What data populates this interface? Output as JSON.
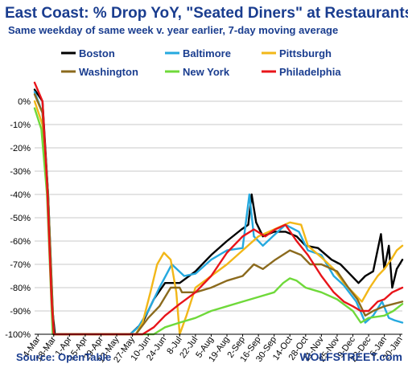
{
  "chart_data": {
    "type": "line",
    "title": "East Coast: % Drop YoY, \"Seated Diners\" at Restaurants",
    "subtitle": "Same weekday of same week v. year earlier, 7-day moving average",
    "source": "Source: OpenTable",
    "brand": "WOLFSTREET.com",
    "ylim": [
      -100,
      10
    ],
    "yticks": [
      0,
      -10,
      -20,
      -30,
      -40,
      -50,
      -60,
      -70,
      -80,
      -90,
      -100
    ],
    "ytick_labels": [
      "0%",
      "-10%",
      "-20%",
      "-30%",
      "-40%",
      "-50%",
      "-60%",
      "-70%",
      "-80%",
      "-90%",
      "-100%"
    ],
    "x_dates": [
      "2020-03-04",
      "2020-03-18",
      "2020-04-01",
      "2020-04-15",
      "2020-04-29",
      "2020-05-13",
      "2020-05-27",
      "2020-06-10",
      "2020-06-24",
      "2020-07-08",
      "2020-07-22",
      "2020-08-05",
      "2020-08-19",
      "2020-09-02",
      "2020-09-16",
      "2020-09-30",
      "2020-10-14",
      "2020-10-28",
      "2020-11-11",
      "2020-11-25",
      "2020-12-09",
      "2020-12-23",
      "2021-01-06",
      "2021-01-20"
    ],
    "xtick_labels": [
      "4-Mar",
      "18-Mar",
      "1-Apr",
      "15-Apr",
      "29-Apr",
      "13-May",
      "27-May",
      "10-Jun",
      "24-Jun",
      "8-Jul",
      "22-Jul",
      "5-Aug",
      "19-Aug",
      "2-Sep",
      "16-Sep",
      "30-Sep",
      "14-Oct",
      "28-Oct",
      "11-Nov",
      "25-Nov",
      "9-Dec",
      "23-Dec",
      "6-Jan",
      "20-Jan"
    ],
    "xlim": [
      "2020-03-01",
      "2021-01-22"
    ],
    "legend_placement": "top, 3 columns",
    "grid": "horizontal",
    "series": [
      {
        "name": "Boston",
        "color": "#000000",
        "points": [
          [
            "2020-03-01",
            5
          ],
          [
            "2020-03-08",
            0
          ],
          [
            "2020-03-13",
            -40
          ],
          [
            "2020-03-17",
            -90
          ],
          [
            "2020-03-19",
            -100
          ],
          [
            "2020-05-25",
            -100
          ],
          [
            "2020-06-05",
            -95
          ],
          [
            "2020-06-15",
            -85
          ],
          [
            "2020-06-25",
            -78
          ],
          [
            "2020-07-08",
            -78
          ],
          [
            "2020-07-22",
            -73
          ],
          [
            "2020-08-05",
            -66
          ],
          [
            "2020-08-19",
            -60
          ],
          [
            "2020-09-01",
            -55
          ],
          [
            "2020-09-07",
            -53
          ],
          [
            "2020-09-10",
            -40
          ],
          [
            "2020-09-14",
            -52
          ],
          [
            "2020-09-20",
            -58
          ],
          [
            "2020-09-30",
            -56
          ],
          [
            "2020-10-10",
            -56
          ],
          [
            "2020-10-20",
            -58
          ],
          [
            "2020-10-28",
            -62
          ],
          [
            "2020-11-08",
            -63
          ],
          [
            "2020-11-20",
            -68
          ],
          [
            "2020-11-28",
            -70
          ],
          [
            "2020-12-06",
            -74
          ],
          [
            "2020-12-14",
            -78
          ],
          [
            "2020-12-20",
            -75
          ],
          [
            "2020-12-27",
            -73
          ],
          [
            "2021-01-03",
            -57
          ],
          [
            "2021-01-06",
            -72
          ],
          [
            "2021-01-10",
            -62
          ],
          [
            "2021-01-13",
            -80
          ],
          [
            "2021-01-17",
            -72
          ],
          [
            "2021-01-22",
            -68
          ]
        ]
      },
      {
        "name": "Baltimore",
        "color": "#25a9df",
        "points": [
          [
            "2020-03-01",
            4
          ],
          [
            "2020-03-08",
            -5
          ],
          [
            "2020-03-13",
            -40
          ],
          [
            "2020-03-18",
            -100
          ],
          [
            "2020-05-25",
            -100
          ],
          [
            "2020-06-01",
            -97
          ],
          [
            "2020-06-10",
            -90
          ],
          [
            "2020-06-20",
            -80
          ],
          [
            "2020-07-01",
            -70
          ],
          [
            "2020-07-12",
            -75
          ],
          [
            "2020-07-22",
            -74
          ],
          [
            "2020-08-05",
            -68
          ],
          [
            "2020-08-19",
            -64
          ],
          [
            "2020-09-02",
            -63
          ],
          [
            "2020-09-08",
            -40
          ],
          [
            "2020-09-12",
            -58
          ],
          [
            "2020-09-20",
            -62
          ],
          [
            "2020-10-01",
            -57
          ],
          [
            "2020-10-10",
            -53
          ],
          [
            "2020-10-22",
            -56
          ],
          [
            "2020-10-30",
            -64
          ],
          [
            "2020-11-11",
            -66
          ],
          [
            "2020-11-22",
            -75
          ],
          [
            "2020-12-01",
            -79
          ],
          [
            "2020-12-12",
            -86
          ],
          [
            "2020-12-20",
            -95
          ],
          [
            "2020-12-27",
            -92
          ],
          [
            "2021-01-04",
            -86
          ],
          [
            "2021-01-10",
            -93
          ],
          [
            "2021-01-15",
            -94
          ],
          [
            "2021-01-22",
            -95
          ]
        ]
      },
      {
        "name": "Pittsburgh",
        "color": "#f2b718",
        "points": [
          [
            "2020-03-01",
            0
          ],
          [
            "2020-03-08",
            -10
          ],
          [
            "2020-03-13",
            -45
          ],
          [
            "2020-03-18",
            -100
          ],
          [
            "2020-05-30",
            -100
          ],
          [
            "2020-06-05",
            -95
          ],
          [
            "2020-06-12",
            -82
          ],
          [
            "2020-06-18",
            -70
          ],
          [
            "2020-06-24",
            -65
          ],
          [
            "2020-06-30",
            -68
          ],
          [
            "2020-07-05",
            -82
          ],
          [
            "2020-07-08",
            -100
          ],
          [
            "2020-07-14",
            -92
          ],
          [
            "2020-07-22",
            -80
          ],
          [
            "2020-08-05",
            -75
          ],
          [
            "2020-08-19",
            -70
          ],
          [
            "2020-09-02",
            -64
          ],
          [
            "2020-09-16",
            -58
          ],
          [
            "2020-09-30",
            -55
          ],
          [
            "2020-10-14",
            -52
          ],
          [
            "2020-10-24",
            -53
          ],
          [
            "2020-10-30",
            -62
          ],
          [
            "2020-11-11",
            -67
          ],
          [
            "2020-11-22",
            -72
          ],
          [
            "2020-12-01",
            -78
          ],
          [
            "2020-12-09",
            -82
          ],
          [
            "2020-12-17",
            -86
          ],
          [
            "2020-12-24",
            -80
          ],
          [
            "2020-12-31",
            -75
          ],
          [
            "2021-01-06",
            -72
          ],
          [
            "2021-01-12",
            -68
          ],
          [
            "2021-01-17",
            -64
          ],
          [
            "2021-01-22",
            -62
          ]
        ]
      },
      {
        "name": "Washington",
        "color": "#8b6a1d",
        "points": [
          [
            "2020-03-01",
            3
          ],
          [
            "2020-03-08",
            -5
          ],
          [
            "2020-03-13",
            -40
          ],
          [
            "2020-03-18",
            -100
          ],
          [
            "2020-05-30",
            -100
          ],
          [
            "2020-06-10",
            -93
          ],
          [
            "2020-06-20",
            -88
          ],
          [
            "2020-06-30",
            -80
          ],
          [
            "2020-07-08",
            -80
          ],
          [
            "2020-07-10",
            -82
          ],
          [
            "2020-07-22",
            -82
          ],
          [
            "2020-08-05",
            -80
          ],
          [
            "2020-08-19",
            -77
          ],
          [
            "2020-09-02",
            -75
          ],
          [
            "2020-09-12",
            -70
          ],
          [
            "2020-09-20",
            -72
          ],
          [
            "2020-10-01",
            -68
          ],
          [
            "2020-10-14",
            -64
          ],
          [
            "2020-10-24",
            -66
          ],
          [
            "2020-11-01",
            -70
          ],
          [
            "2020-11-11",
            -70
          ],
          [
            "2020-11-25",
            -73
          ],
          [
            "2020-12-05",
            -80
          ],
          [
            "2020-12-13",
            -85
          ],
          [
            "2020-12-20",
            -92
          ],
          [
            "2020-12-27",
            -90
          ],
          [
            "2021-01-06",
            -88
          ],
          [
            "2021-01-14",
            -87
          ],
          [
            "2021-01-22",
            -86
          ]
        ]
      },
      {
        "name": "New York",
        "color": "#6fd93a",
        "points": [
          [
            "2020-03-01",
            -3
          ],
          [
            "2020-03-07",
            -12
          ],
          [
            "2020-03-12",
            -40
          ],
          [
            "2020-03-17",
            -100
          ],
          [
            "2020-06-15",
            -100
          ],
          [
            "2020-06-25",
            -97
          ],
          [
            "2020-07-08",
            -95
          ],
          [
            "2020-07-22",
            -93
          ],
          [
            "2020-08-05",
            -90
          ],
          [
            "2020-08-19",
            -88
          ],
          [
            "2020-09-02",
            -86
          ],
          [
            "2020-09-16",
            -84
          ],
          [
            "2020-09-30",
            -82
          ],
          [
            "2020-10-08",
            -78
          ],
          [
            "2020-10-14",
            -76
          ],
          [
            "2020-10-20",
            -77
          ],
          [
            "2020-10-28",
            -80
          ],
          [
            "2020-11-11",
            -82
          ],
          [
            "2020-11-25",
            -85
          ],
          [
            "2020-12-09",
            -90
          ],
          [
            "2020-12-16",
            -95
          ],
          [
            "2020-12-23",
            -93
          ],
          [
            "2021-01-06",
            -92
          ],
          [
            "2021-01-14",
            -90
          ],
          [
            "2021-01-22",
            -87
          ]
        ]
      },
      {
        "name": "Philadelphia",
        "color": "#e8141a",
        "points": [
          [
            "2020-03-01",
            8
          ],
          [
            "2020-03-08",
            0
          ],
          [
            "2020-03-12",
            -35
          ],
          [
            "2020-03-16",
            -85
          ],
          [
            "2020-03-18",
            -100
          ],
          [
            "2020-06-05",
            -100
          ],
          [
            "2020-06-15",
            -97
          ],
          [
            "2020-06-25",
            -92
          ],
          [
            "2020-07-08",
            -87
          ],
          [
            "2020-07-22",
            -82
          ],
          [
            "2020-08-05",
            -75
          ],
          [
            "2020-08-19",
            -65
          ],
          [
            "2020-09-02",
            -58
          ],
          [
            "2020-09-12",
            -55
          ],
          [
            "2020-09-22",
            -58
          ],
          [
            "2020-10-01",
            -55
          ],
          [
            "2020-10-10",
            -53
          ],
          [
            "2020-10-20",
            -60
          ],
          [
            "2020-10-30",
            -66
          ],
          [
            "2020-11-11",
            -75
          ],
          [
            "2020-11-22",
            -82
          ],
          [
            "2020-12-01",
            -86
          ],
          [
            "2020-12-09",
            -88
          ],
          [
            "2020-12-16",
            -90
          ],
          [
            "2020-12-23",
            -90
          ],
          [
            "2020-12-31",
            -86
          ],
          [
            "2021-01-06",
            -85
          ],
          [
            "2021-01-13",
            -82
          ],
          [
            "2021-01-22",
            -80
          ]
        ]
      }
    ]
  }
}
